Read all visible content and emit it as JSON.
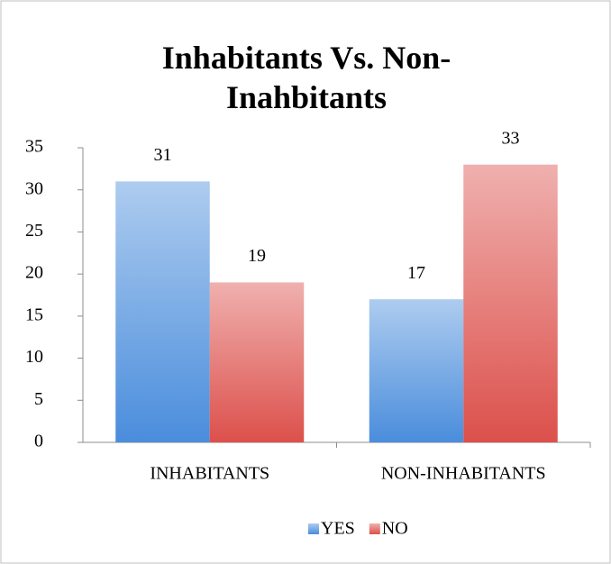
{
  "chart_data": {
    "type": "bar",
    "title": "Inhabitants Vs. Non-Inahbitants",
    "categories": [
      "INHABITANTS",
      "NON-INHABITANTS"
    ],
    "series": [
      {
        "name": "YES",
        "color": "#4a8ddc",
        "values": [
          31,
          17
        ]
      },
      {
        "name": "NO",
        "color": "#dc504b",
        "values": [
          19,
          33
        ]
      }
    ],
    "ylim": [
      0,
      35
    ],
    "yticks": [
      0,
      5,
      10,
      15,
      20,
      25,
      30,
      35
    ],
    "grid": false,
    "legend": "bottom"
  }
}
